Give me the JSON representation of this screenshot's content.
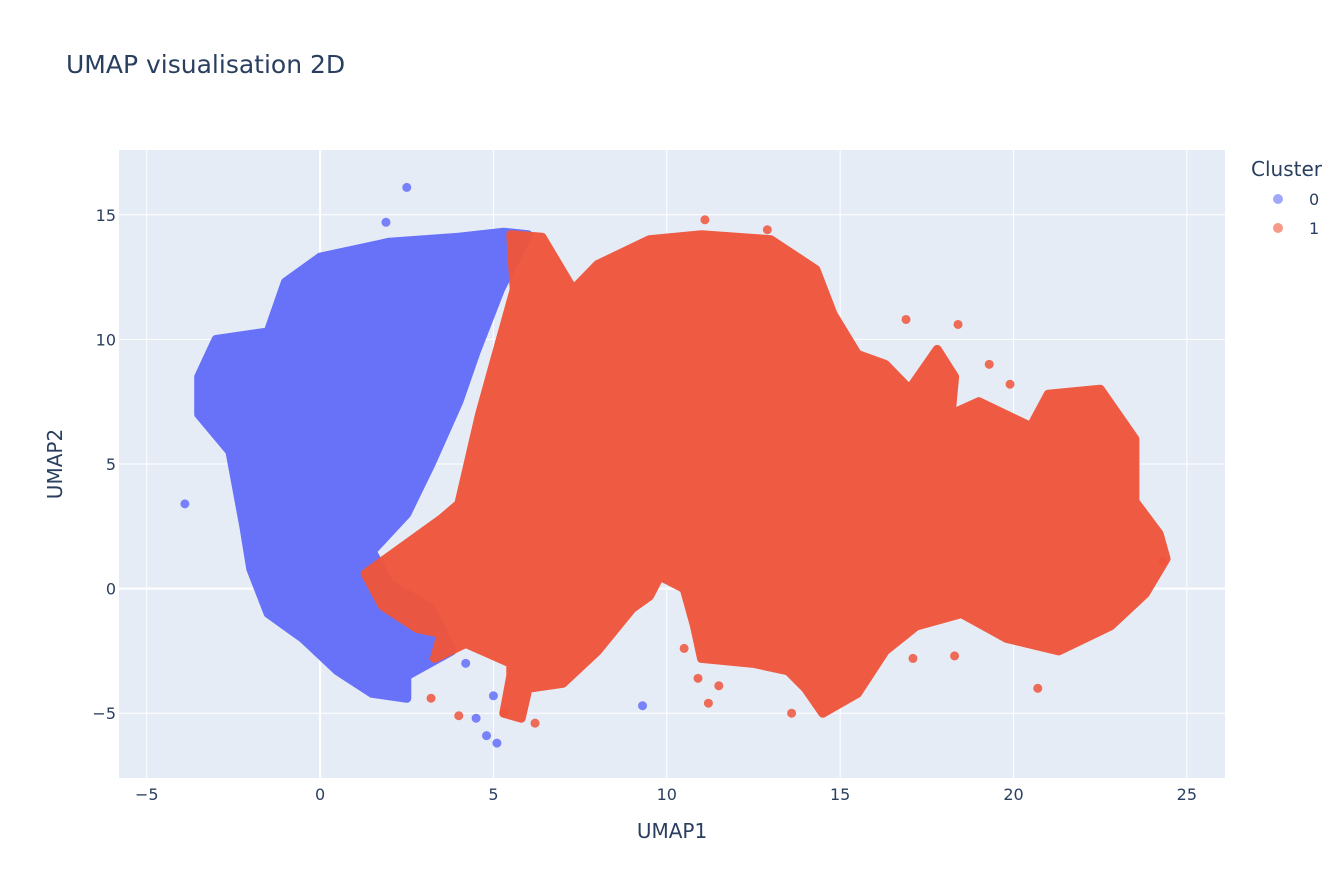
{
  "chart_data": {
    "type": "scatter",
    "title": "UMAP visualisation 2D",
    "xlabel": "UMAP1",
    "ylabel": "UMAP2",
    "xlim": [
      -5.8,
      26.1
    ],
    "ylim": [
      -7.6,
      17.6
    ],
    "xticks": [
      -5,
      0,
      5,
      10,
      15,
      20,
      25
    ],
    "yticks": [
      -5,
      0,
      5,
      10,
      15
    ],
    "grid": true,
    "legend": {
      "title": "Cluster",
      "position": "top-right"
    },
    "series": [
      {
        "name": "0",
        "color": "#636efa",
        "region": [
          [
            -3.5,
            8.5
          ],
          [
            -3.0,
            10.0
          ],
          [
            -1.5,
            10.3
          ],
          [
            -1.0,
            12.3
          ],
          [
            0,
            13.3
          ],
          [
            2.0,
            13.9
          ],
          [
            4.0,
            14.1
          ],
          [
            5.3,
            14.3
          ],
          [
            6.0,
            14.2
          ],
          [
            5.2,
            12.0
          ],
          [
            4.5,
            9.5
          ],
          [
            4.0,
            7.5
          ],
          [
            3.2,
            5.0
          ],
          [
            2.5,
            3.0
          ],
          [
            1.5,
            1.5
          ],
          [
            2.0,
            0.2
          ],
          [
            3.2,
            -0.8
          ],
          [
            3.8,
            -2.5
          ],
          [
            2.5,
            -3.5
          ],
          [
            2.5,
            -4.4
          ],
          [
            1.5,
            -4.2
          ],
          [
            0.5,
            -3.3
          ],
          [
            -0.5,
            -2.0
          ],
          [
            -1.5,
            -1.0
          ],
          [
            -2.0,
            0.8
          ],
          [
            -2.2,
            2.5
          ],
          [
            -2.6,
            5.5
          ],
          [
            -3.5,
            7.0
          ]
        ],
        "points": [
          [
            2.5,
            16.1
          ],
          [
            1.9,
            14.7
          ],
          [
            -3.9,
            3.4
          ],
          [
            9.3,
            -4.7
          ],
          [
            5.1,
            -6.2
          ],
          [
            4.8,
            -5.9
          ],
          [
            4.5,
            -5.2
          ],
          [
            5.0,
            -4.3
          ],
          [
            4.2,
            -3.0
          ]
        ]
      },
      {
        "name": "1",
        "color": "#ef553b",
        "region": [
          [
            1.3,
            0.6
          ],
          [
            3.5,
            2.8
          ],
          [
            4.0,
            3.4
          ],
          [
            4.6,
            7.0
          ],
          [
            5.0,
            9.0
          ],
          [
            5.6,
            12.0
          ],
          [
            5.5,
            14.2
          ],
          [
            6.4,
            14.1
          ],
          [
            7.3,
            12.0
          ],
          [
            8.0,
            13.0
          ],
          [
            9.5,
            14.0
          ],
          [
            11.0,
            14.2
          ],
          [
            13.0,
            14.0
          ],
          [
            14.3,
            12.8
          ],
          [
            14.8,
            11.0
          ],
          [
            15.5,
            9.4
          ],
          [
            16.3,
            9.0
          ],
          [
            17.0,
            8.0
          ],
          [
            17.8,
            9.6
          ],
          [
            18.3,
            8.5
          ],
          [
            18.2,
            7.0
          ],
          [
            19.0,
            7.5
          ],
          [
            20.5,
            6.5
          ],
          [
            21.0,
            7.8
          ],
          [
            22.5,
            8.0
          ],
          [
            23.5,
            6.0
          ],
          [
            23.5,
            3.5
          ],
          [
            24.2,
            2.2
          ],
          [
            24.4,
            1.2
          ],
          [
            23.8,
            -0.2
          ],
          [
            22.8,
            -1.5
          ],
          [
            21.3,
            -2.5
          ],
          [
            19.8,
            -2.0
          ],
          [
            18.5,
            -1.0
          ],
          [
            17.2,
            -1.5
          ],
          [
            16.3,
            -2.5
          ],
          [
            15.5,
            -4.2
          ],
          [
            14.5,
            -5.0
          ],
          [
            14.0,
            -4.0
          ],
          [
            13.5,
            -3.3
          ],
          [
            12.5,
            -3.0
          ],
          [
            11.0,
            -2.8
          ],
          [
            10.8,
            -1.5
          ],
          [
            10.5,
            0.0
          ],
          [
            9.8,
            0.5
          ],
          [
            9.5,
            -0.3
          ],
          [
            9.0,
            -0.8
          ],
          [
            8.0,
            -2.5
          ],
          [
            7.0,
            -3.8
          ],
          [
            6.0,
            -4.0
          ],
          [
            5.8,
            -5.2
          ],
          [
            5.3,
            -5.0
          ],
          [
            5.5,
            -3.5
          ],
          [
            5.5,
            -3.0
          ],
          [
            4.2,
            -2.2
          ],
          [
            3.3,
            -2.8
          ],
          [
            3.5,
            -1.8
          ],
          [
            2.8,
            -1.6
          ],
          [
            1.8,
            -0.7
          ]
        ],
        "points": [
          [
            11.1,
            14.8
          ],
          [
            12.9,
            14.4
          ],
          [
            16.9,
            10.8
          ],
          [
            18.4,
            10.6
          ],
          [
            19.3,
            9.0
          ],
          [
            19.9,
            8.2
          ],
          [
            10.5,
            -2.4
          ],
          [
            10.9,
            -3.6
          ],
          [
            11.2,
            -4.6
          ],
          [
            11.5,
            -3.9
          ],
          [
            13.6,
            -5.0
          ],
          [
            3.2,
            -4.4
          ],
          [
            4.0,
            -5.1
          ],
          [
            5.3,
            -5.0
          ],
          [
            6.2,
            -5.4
          ],
          [
            17.1,
            -2.8
          ],
          [
            18.3,
            -2.7
          ],
          [
            20.7,
            -4.0
          ],
          [
            24.3,
            1.1
          ]
        ]
      }
    ]
  }
}
